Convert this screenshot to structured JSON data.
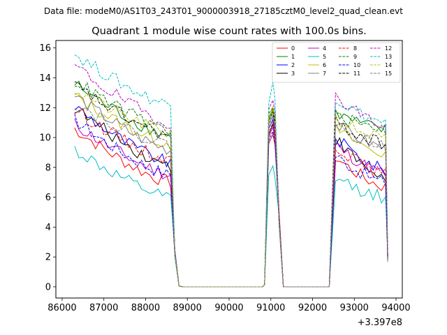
{
  "suptitle": "Data file: modeM0/AS1T03_243T01_9000003918_27185cztM0_level2_quad_clean.evt",
  "chart_data": {
    "type": "line",
    "title": "Quadrant 1 module wise count rates with 100.0s bins.",
    "xlabel": "",
    "ylabel": "",
    "x_offset_label": "+3.397e8",
    "xlim": [
      85850,
      94150
    ],
    "ylim": [
      -0.75,
      16.5
    ],
    "xticks": [
      86000,
      87000,
      88000,
      89000,
      90000,
      91000,
      92000,
      93000,
      94000
    ],
    "xtick_labels": [
      "86000",
      "87000",
      "88000",
      "89000",
      "90000",
      "91000",
      "92000",
      "93000",
      "94000"
    ],
    "yticks": [
      0,
      2,
      4,
      6,
      8,
      10,
      12,
      14,
      16
    ],
    "ytick_labels": [
      "0",
      "2",
      "4",
      "6",
      "8",
      "10",
      "12",
      "14",
      "16"
    ],
    "legend_location": "upper right",
    "legend_columns": 4,
    "segments": [
      {
        "start": 86300,
        "end": 88600,
        "step": 100,
        "descent_end": 88800
      },
      {
        "start": 90950,
        "end": 91150,
        "step": 100,
        "descent_end": 91300
      },
      {
        "start": 92550,
        "end": 93750,
        "step": 100,
        "descent_end": 93800
      }
    ],
    "series": [
      {
        "name": "0",
        "color": "#ff0000",
        "dash": "solid",
        "seg1": [
          10.6,
          7.0
        ],
        "seg2": [
          9.6,
          10.2,
          9.9
        ],
        "seg3": [
          8.7,
          6.7
        ]
      },
      {
        "name": "1",
        "color": "#008000",
        "dash": "solid",
        "seg1": [
          13.6,
          10.1
        ],
        "seg2": [
          11.3,
          11.9,
          11.6
        ],
        "seg3": [
          11.6,
          10.5
        ]
      },
      {
        "name": "2",
        "color": "#0000ff",
        "dash": "solid",
        "seg1": [
          12.1,
          8.3
        ],
        "seg2": [
          10.6,
          11.2,
          10.9
        ],
        "seg3": [
          10.0,
          7.8
        ]
      },
      {
        "name": "3",
        "color": "#000000",
        "dash": "solid",
        "seg1": [
          12.0,
          8.1
        ],
        "seg2": [
          10.2,
          10.9,
          10.5
        ],
        "seg3": [
          9.9,
          7.3
        ]
      },
      {
        "name": "4",
        "color": "#bf00bf",
        "dash": "solid",
        "seg1": [
          10.9,
          7.5
        ],
        "seg2": [
          10.0,
          10.7,
          10.3
        ],
        "seg3": [
          9.5,
          7.6
        ]
      },
      {
        "name": "5",
        "color": "#00bfbf",
        "dash": "solid",
        "seg1": [
          9.2,
          5.9
        ],
        "seg2": [
          7.5,
          8.1,
          7.7
        ],
        "seg3": [
          7.3,
          6.0
        ]
      },
      {
        "name": "6",
        "color": "#bfbf00",
        "dash": "solid",
        "seg1": [
          12.8,
          9.6
        ],
        "seg2": [
          11.1,
          11.8,
          11.4
        ],
        "seg3": [
          10.6,
          8.9
        ]
      },
      {
        "name": "7",
        "color": "#808080",
        "dash": "solid",
        "seg1": [
          12.8,
          9.2
        ],
        "seg2": [
          10.9,
          11.5,
          11.2
        ],
        "seg3": [
          10.9,
          9.3
        ]
      },
      {
        "name": "8",
        "color": "#ff0000",
        "dash": "dashed",
        "seg1": [
          11.9,
          8.5
        ],
        "seg2": [
          10.3,
          11.0,
          10.6
        ],
        "seg3": [
          9.5,
          7.5
        ]
      },
      {
        "name": "9",
        "color": "#008000",
        "dash": "dashed",
        "seg1": [
          13.8,
          10.5
        ],
        "seg2": [
          11.6,
          12.0,
          11.7
        ],
        "seg3": [
          11.4,
          10.6
        ]
      },
      {
        "name": "10",
        "color": "#0000ff",
        "dash": "dashed",
        "seg1": [
          11.2,
          7.5
        ],
        "seg2": [
          9.8,
          10.4,
          10.1
        ],
        "seg3": [
          8.8,
          7.0
        ]
      },
      {
        "name": "11",
        "color": "#000000",
        "dash": "dashed",
        "seg1": [
          13.5,
          10.1
        ],
        "seg2": [
          11.1,
          11.7,
          11.4
        ],
        "seg3": [
          11.0,
          9.6
        ]
      },
      {
        "name": "12",
        "color": "#bf00bf",
        "dash": "dashed",
        "seg1": [
          14.8,
          11.0
        ],
        "seg2": [
          11.9,
          12.5,
          12.1
        ],
        "seg3": [
          12.9,
          10.8
        ]
      },
      {
        "name": "13",
        "color": "#00bfbf",
        "dash": "dashed",
        "seg1": [
          15.6,
          12.2
        ],
        "seg2": [
          12.3,
          13.7,
          13.0
        ],
        "seg3": [
          12.6,
          11.0
        ]
      },
      {
        "name": "14",
        "color": "#bfbf00",
        "dash": "dashed",
        "seg1": [
          13.2,
          10.3
        ],
        "seg2": [
          11.5,
          12.1,
          11.8
        ],
        "seg3": [
          11.3,
          9.9
        ]
      },
      {
        "name": "15",
        "color": "#808080",
        "dash": "dashed",
        "seg1": [
          12.3,
          9.5
        ],
        "seg2": [
          10.8,
          11.4,
          11.1
        ],
        "seg3": [
          10.8,
          9.5
        ]
      }
    ]
  }
}
